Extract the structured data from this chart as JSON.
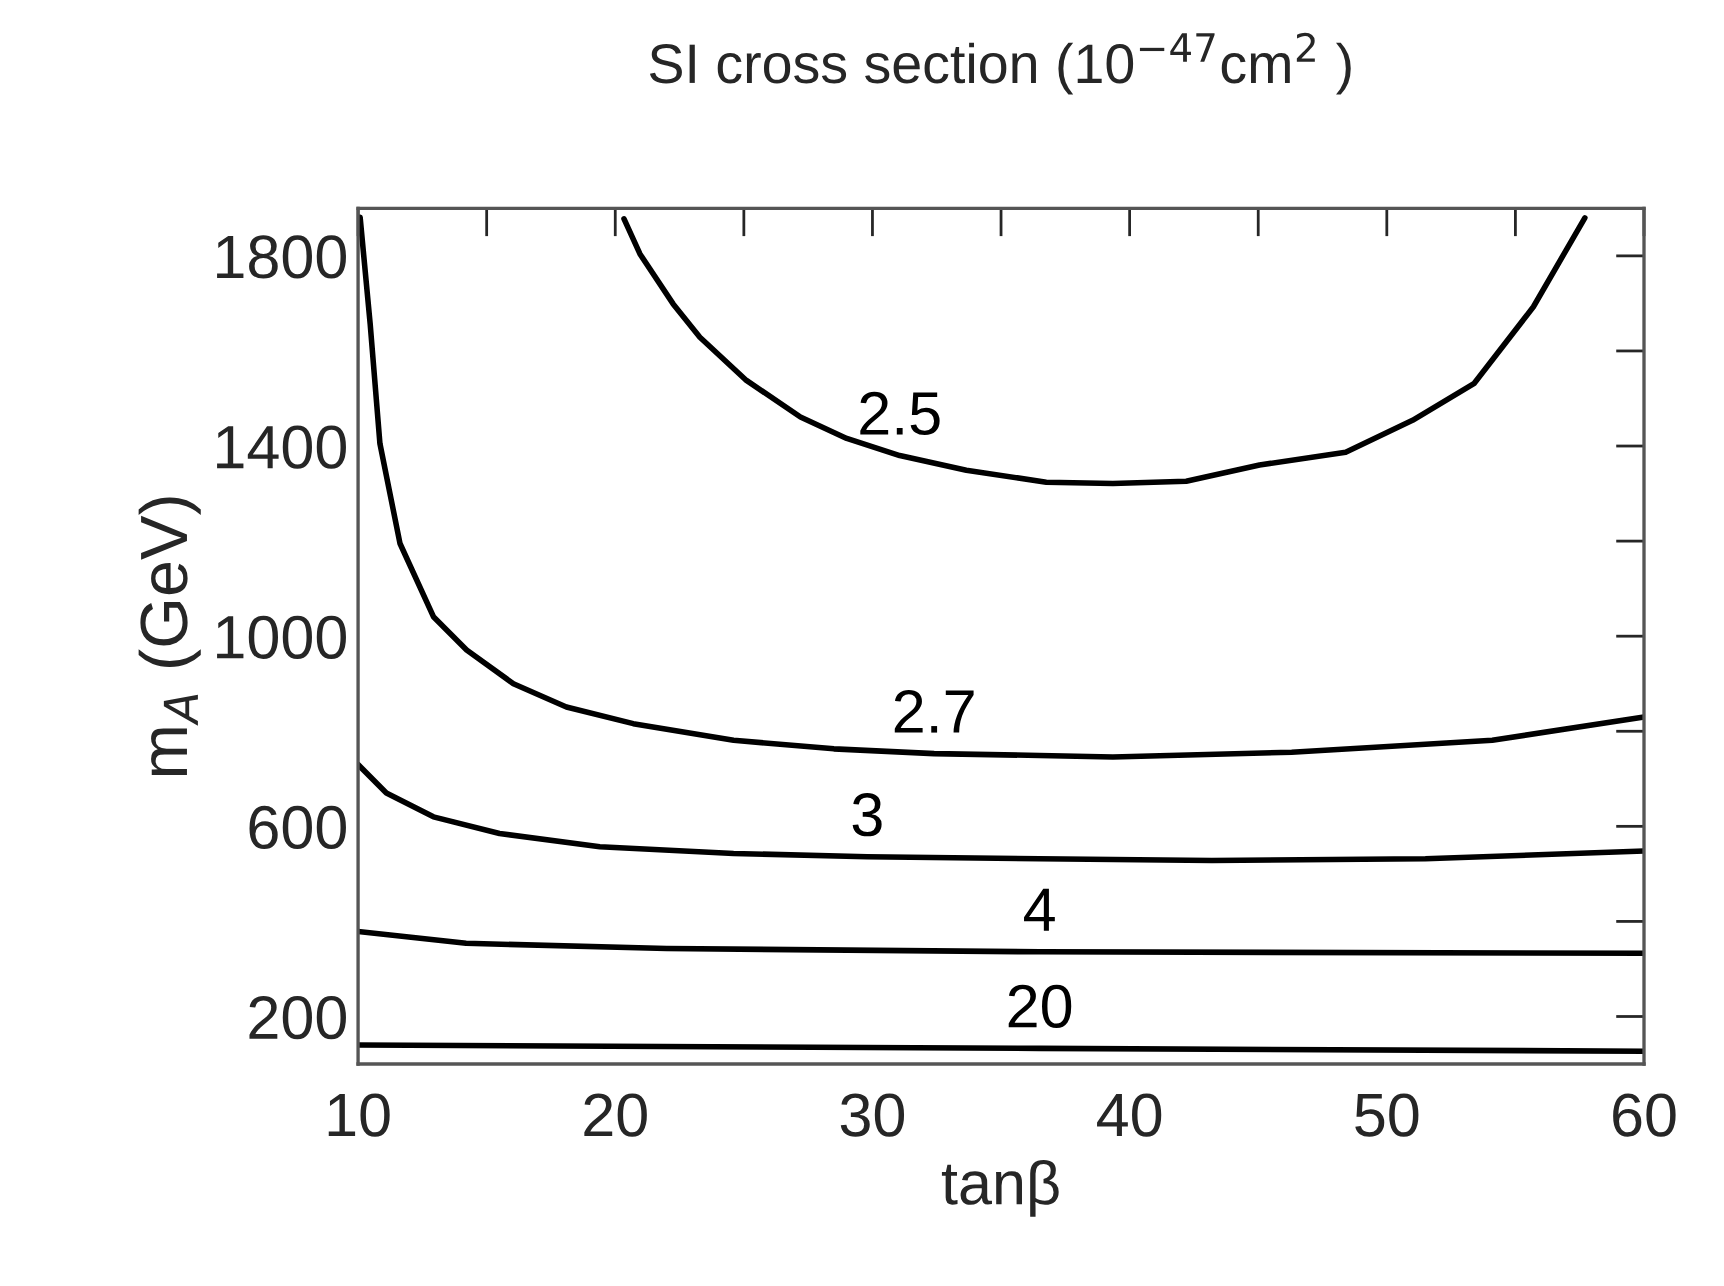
{
  "chart_data": {
    "type": "line",
    "title": "SI cross section (10$^{−47}$cm$^{2}$ )",
    "xlabel": "tanβ",
    "ylabel": "m$_{A}$ (GeV)",
    "xlim": [
      10,
      60
    ],
    "ylim": [
      100,
      1900
    ],
    "xticks": [
      10,
      20,
      30,
      40,
      50,
      60
    ],
    "yticks": [
      200,
      600,
      1000,
      1400,
      1800
    ],
    "grid": false,
    "legend": false,
    "marker": "none",
    "line_style": "solid",
    "series": [
      {
        "name": "2.5",
        "color": "#000000",
        "x": [
          20.34,
          20.96,
          22.25,
          23.29,
          25.1,
          27.2,
          29.0,
          31.06,
          33.65,
          36.76,
          39.35,
          42.2,
          45.05,
          48.4,
          51.0,
          53.4,
          55.7,
          57.7
        ],
        "values": [
          1878,
          1804,
          1699,
          1629,
          1538,
          1461,
          1416,
          1380,
          1349,
          1324,
          1321,
          1326,
          1360,
          1387,
          1454,
          1532,
          1693,
          1880
        ]
      },
      {
        "name": "2.7",
        "color": "#000000",
        "x": [
          10.08,
          10.47,
          10.85,
          11.63,
          12.93,
          14.22,
          16.04,
          18.1,
          20.7,
          24.6,
          28.5,
          32.4,
          36.5,
          39.35,
          46.3,
          54.1,
          60
        ],
        "values": [
          1881,
          1657,
          1405,
          1195,
          1041,
          971,
          900,
          851,
          816,
          781,
          763,
          753,
          749,
          746,
          756,
          781,
          830
        ]
      },
      {
        "name": "3",
        "color": "#000000",
        "x": [
          10,
          11.1,
          12.93,
          15.5,
          19.4,
          24.6,
          29.8,
          36.5,
          43.2,
          51.5,
          60
        ],
        "values": [
          730,
          670,
          620,
          585,
          557,
          543,
          536,
          532,
          528,
          532,
          548
        ]
      },
      {
        "name": "4",
        "color": "#000000",
        "x": [
          10,
          14.2,
          22,
          36.5,
          60
        ],
        "values": [
          379,
          354,
          343,
          336,
          333
        ]
      },
      {
        "name": "20",
        "color": "#000000",
        "x": [
          10,
          36.5,
          60
        ],
        "values": [
          140,
          133,
          127
        ]
      }
    ]
  }
}
